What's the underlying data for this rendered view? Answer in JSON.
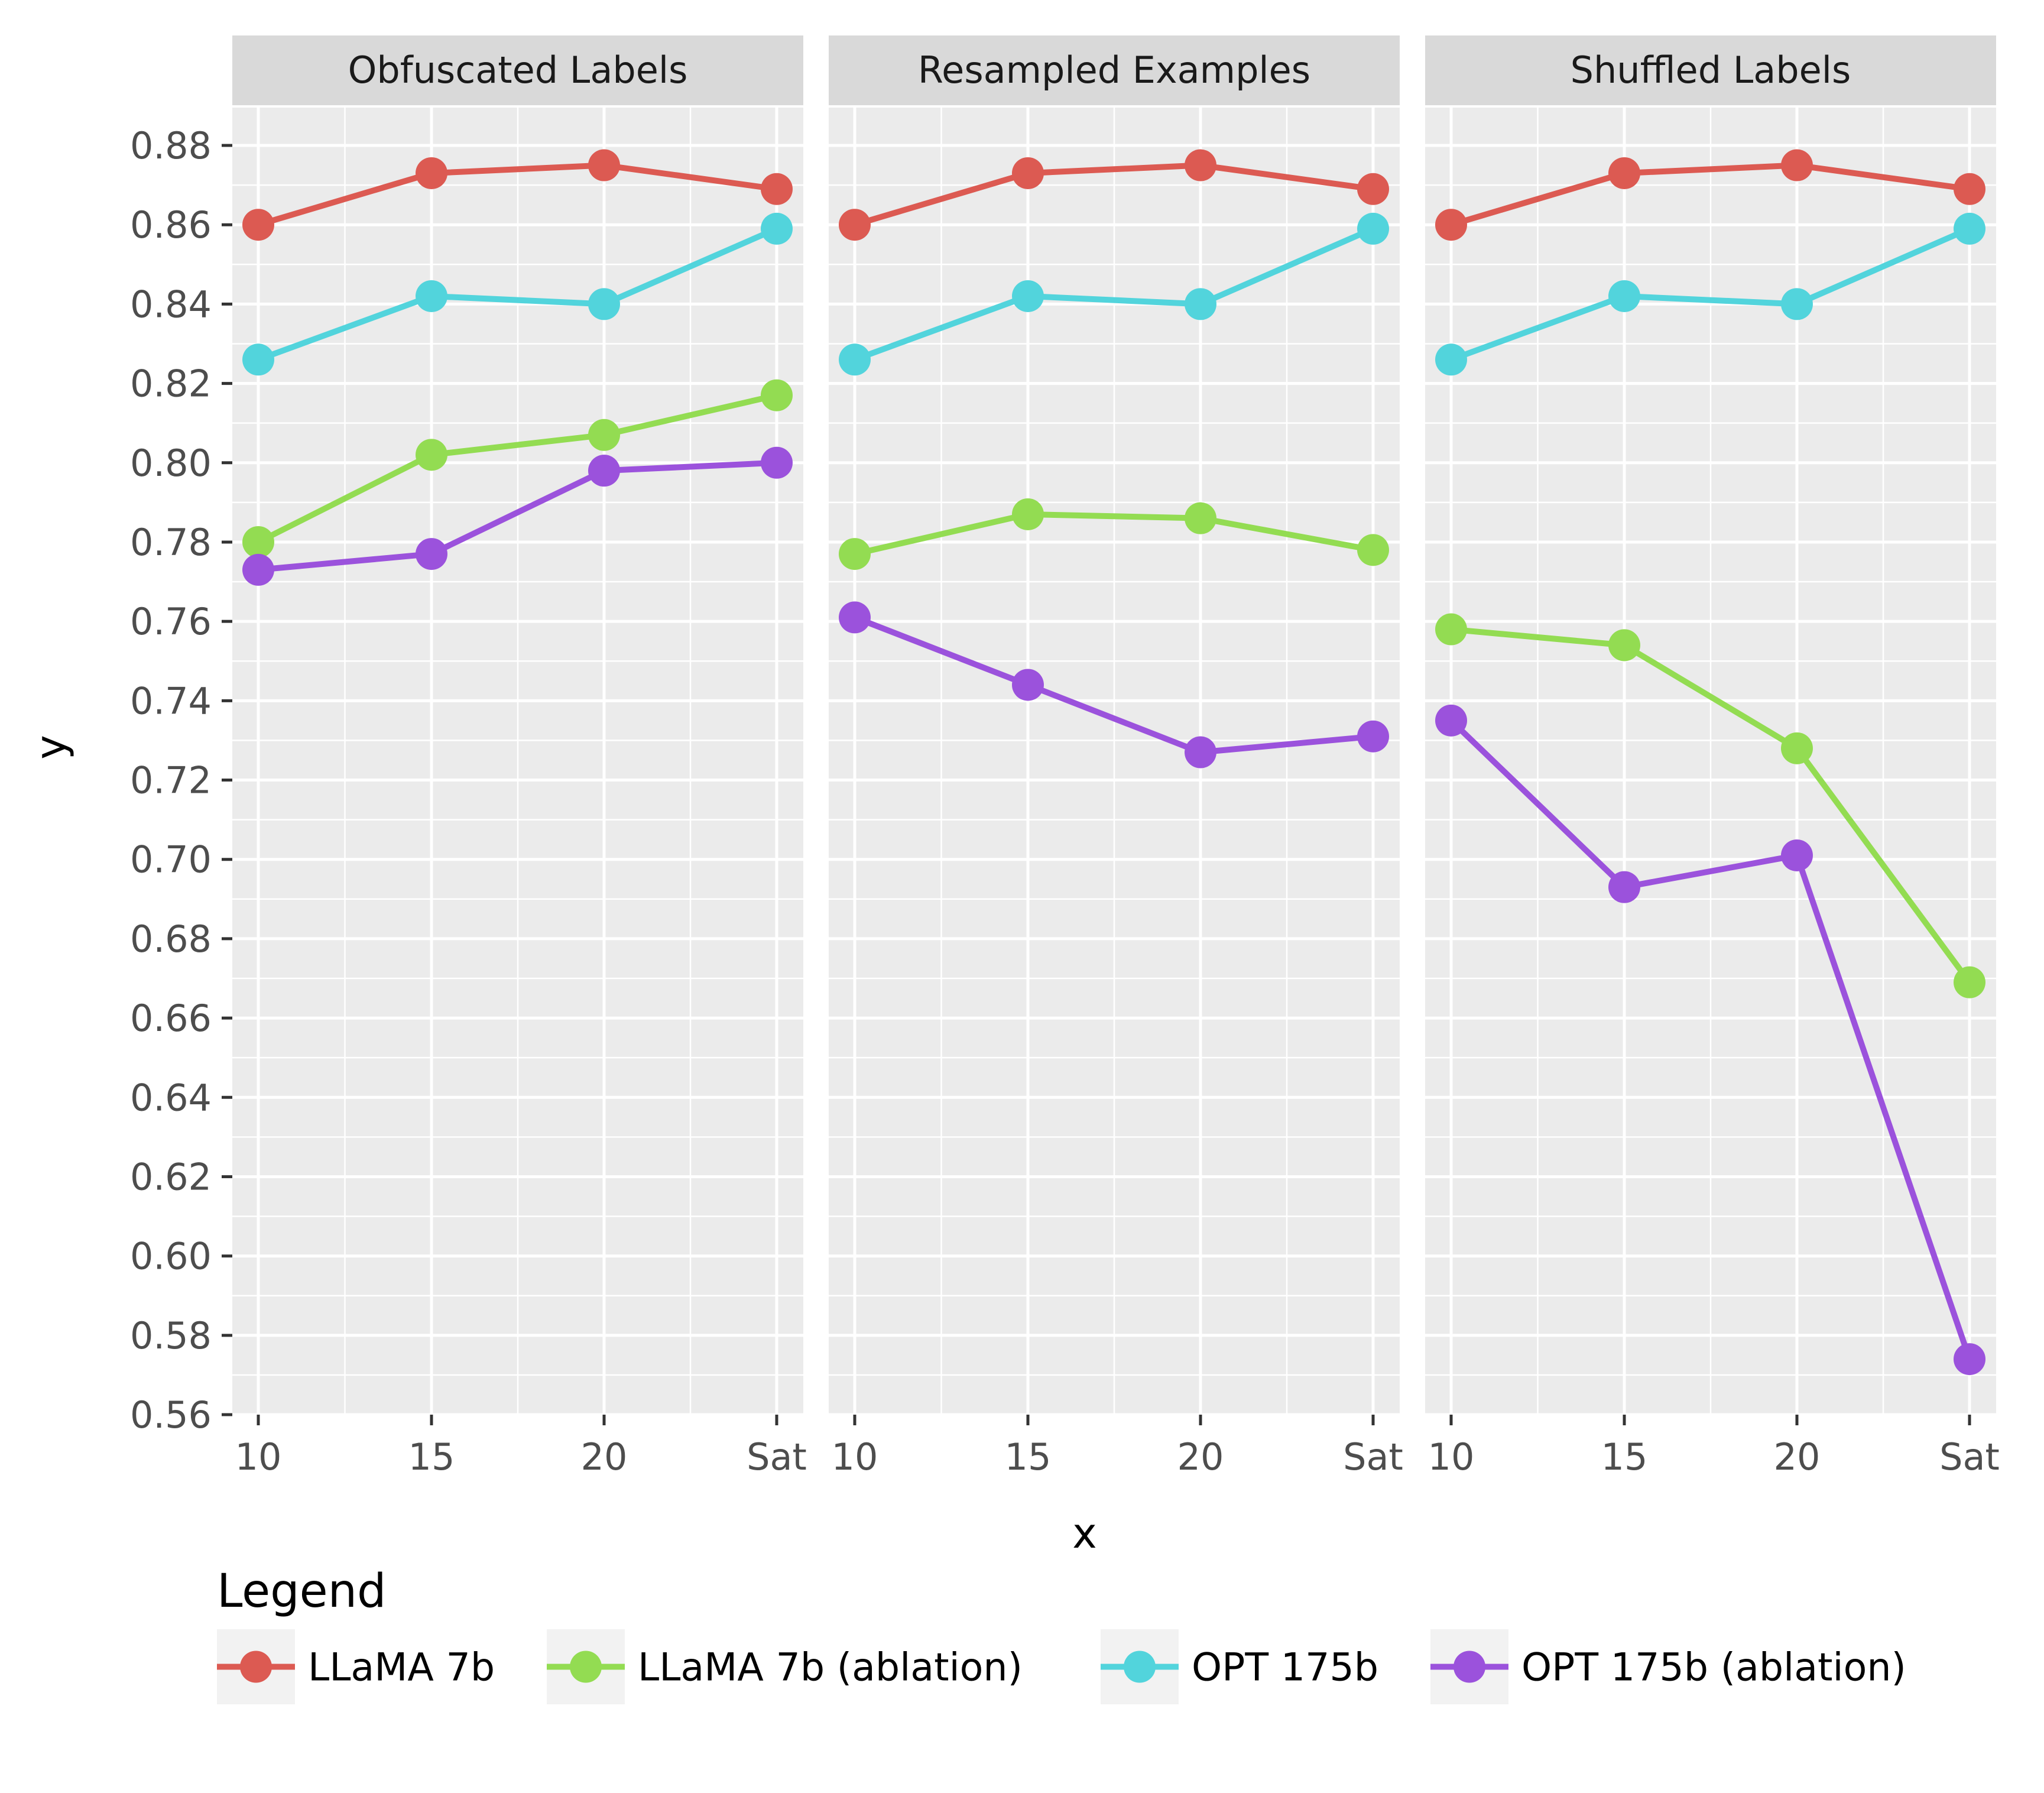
{
  "chart_data": {
    "type": "line",
    "x_categories": [
      "10",
      "15",
      "20",
      "Sat"
    ],
    "xlabel": "x",
    "ylabel": "y",
    "ylim": [
      0.56,
      0.88
    ],
    "y_ticks": [
      "0.56",
      "0.58",
      "0.60",
      "0.62",
      "0.64",
      "0.66",
      "0.68",
      "0.70",
      "0.72",
      "0.74",
      "0.76",
      "0.78",
      "0.80",
      "0.82",
      "0.84",
      "0.86",
      "0.88"
    ],
    "legend_title": "Legend",
    "legend_position": "bottom",
    "series_meta": [
      {
        "name": "LLaMA 7b",
        "color": "#dc5a52"
      },
      {
        "name": "LLaMA 7b (ablation)",
        "color": "#93dc52"
      },
      {
        "name": "OPT 175b",
        "color": "#52d4dc"
      },
      {
        "name": "OPT 175b (ablation)",
        "color": "#9b52dc"
      }
    ],
    "panels": [
      {
        "title": "Obfuscated Labels",
        "series": [
          {
            "name": "LLaMA 7b",
            "values": [
              0.86,
              0.873,
              0.875,
              0.869
            ]
          },
          {
            "name": "LLaMA 7b (ablation)",
            "values": [
              0.78,
              0.802,
              0.807,
              0.817
            ]
          },
          {
            "name": "OPT 175b",
            "values": [
              0.826,
              0.842,
              0.84,
              0.859
            ]
          },
          {
            "name": "OPT 175b (ablation)",
            "values": [
              0.773,
              0.777,
              0.798,
              0.8
            ]
          }
        ]
      },
      {
        "title": "Resampled Examples",
        "series": [
          {
            "name": "LLaMA 7b",
            "values": [
              0.86,
              0.873,
              0.875,
              0.869
            ]
          },
          {
            "name": "LLaMA 7b (ablation)",
            "values": [
              0.777,
              0.787,
              0.786,
              0.778
            ]
          },
          {
            "name": "OPT 175b",
            "values": [
              0.826,
              0.842,
              0.84,
              0.859
            ]
          },
          {
            "name": "OPT 175b (ablation)",
            "values": [
              0.761,
              0.744,
              0.727,
              0.731
            ]
          }
        ]
      },
      {
        "title": "Shuffled Labels",
        "series": [
          {
            "name": "LLaMA 7b",
            "values": [
              0.86,
              0.873,
              0.875,
              0.869
            ]
          },
          {
            "name": "LLaMA 7b (ablation)",
            "values": [
              0.758,
              0.754,
              0.728,
              0.669
            ]
          },
          {
            "name": "OPT 175b",
            "values": [
              0.826,
              0.842,
              0.84,
              0.859
            ]
          },
          {
            "name": "OPT 175b (ablation)",
            "values": [
              0.735,
              0.693,
              0.701,
              0.574
            ]
          }
        ]
      }
    ]
  }
}
